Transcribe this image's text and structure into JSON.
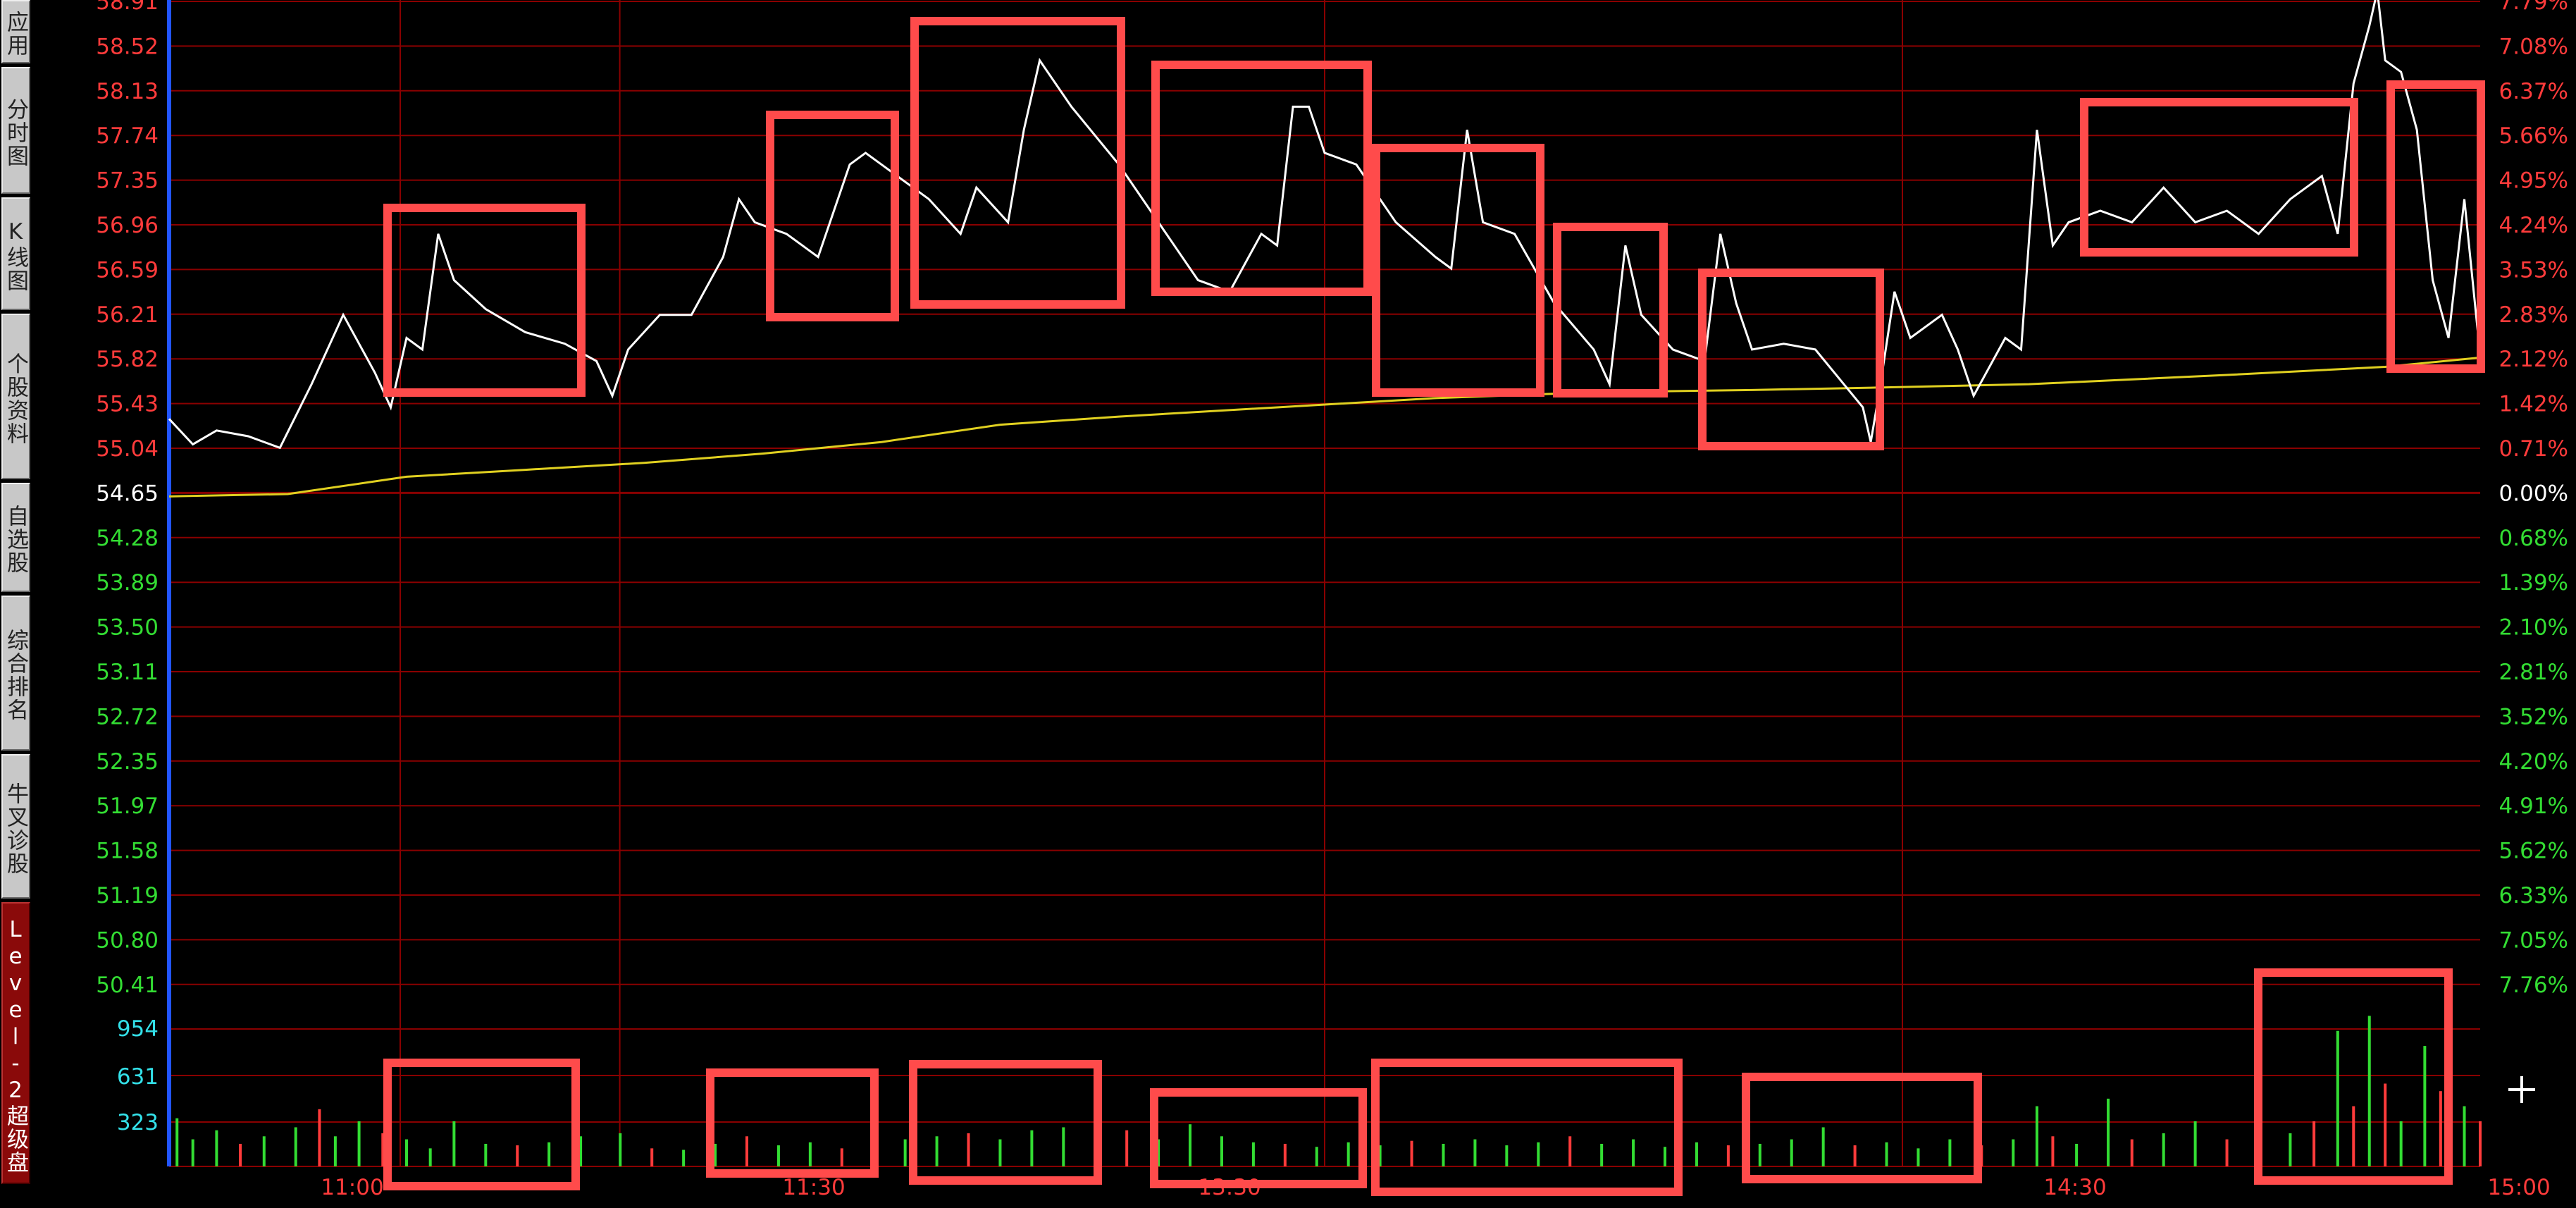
{
  "sidebar": {
    "tabs": [
      "应用",
      "分时图",
      "K线图",
      "个股资料",
      "自选股",
      "综合排名",
      "牛叉诊股",
      "Level-2超级盘口"
    ]
  },
  "chart_data": {
    "type": "line",
    "title": "",
    "prev_close": 54.65,
    "price_ticks_left": [
      "58.91",
      "58.52",
      "58.13",
      "57.74",
      "57.35",
      "56.96",
      "56.59",
      "56.21",
      "55.82",
      "55.43",
      "55.04",
      "54.65",
      "54.28",
      "53.89",
      "53.50",
      "53.11",
      "52.72",
      "52.35",
      "51.97",
      "51.58",
      "51.19",
      "50.80",
      "50.41"
    ],
    "pct_ticks_right": [
      "7.79%",
      "7.08%",
      "6.37%",
      "5.66%",
      "4.95%",
      "4.24%",
      "3.53%",
      "2.83%",
      "2.12%",
      "1.42%",
      "0.71%",
      "0.00%",
      "0.68%",
      "1.39%",
      "2.10%",
      "2.81%",
      "3.52%",
      "4.20%",
      "4.91%",
      "5.62%",
      "6.33%",
      "7.05%",
      "7.76%"
    ],
    "volume_ticks": [
      "954",
      "631",
      "323"
    ],
    "x_labels": [
      "11:00",
      "11:30",
      "13:30",
      "14:30",
      "15:00"
    ],
    "ylim": [
      50.41,
      58.91
    ],
    "volume_ylim": [
      0,
      1100
    ],
    "series": [
      {
        "name": "price",
        "points": [
          [
            0,
            55.3
          ],
          [
            3,
            55.08
          ],
          [
            6,
            55.2
          ],
          [
            10,
            55.15
          ],
          [
            14,
            55.05
          ],
          [
            18,
            55.6
          ],
          [
            22,
            56.2
          ],
          [
            26,
            55.7
          ],
          [
            28,
            55.4
          ],
          [
            30,
            56.0
          ],
          [
            32,
            55.9
          ],
          [
            34,
            56.9
          ],
          [
            36,
            56.5
          ],
          [
            40,
            56.25
          ],
          [
            45,
            56.05
          ],
          [
            50,
            55.95
          ],
          [
            54,
            55.8
          ],
          [
            56,
            55.5
          ],
          [
            58,
            55.9
          ],
          [
            62,
            56.2
          ],
          [
            66,
            56.2
          ],
          [
            70,
            56.7
          ],
          [
            72,
            57.2
          ],
          [
            74,
            57.0
          ],
          [
            78,
            56.9
          ],
          [
            82,
            56.7
          ],
          [
            84,
            57.1
          ],
          [
            86,
            57.5
          ],
          [
            88,
            57.6
          ],
          [
            92,
            57.4
          ],
          [
            96,
            57.2
          ],
          [
            100,
            56.9
          ],
          [
            102,
            57.3
          ],
          [
            106,
            57.0
          ],
          [
            108,
            57.8
          ],
          [
            110,
            58.4
          ],
          [
            114,
            58.0
          ],
          [
            120,
            57.5
          ],
          [
            126,
            56.9
          ],
          [
            130,
            56.5
          ],
          [
            134,
            56.4
          ],
          [
            138,
            56.9
          ],
          [
            140,
            56.8
          ],
          [
            142,
            58.0
          ],
          [
            144,
            58.0
          ],
          [
            146,
            57.6
          ],
          [
            150,
            57.5
          ],
          [
            155,
            57.0
          ],
          [
            160,
            56.7
          ],
          [
            162,
            56.6
          ],
          [
            164,
            57.8
          ],
          [
            166,
            57.0
          ],
          [
            170,
            56.9
          ],
          [
            175,
            56.3
          ],
          [
            180,
            55.9
          ],
          [
            182,
            55.6
          ],
          [
            184,
            56.8
          ],
          [
            186,
            56.2
          ],
          [
            190,
            55.9
          ],
          [
            194,
            55.8
          ],
          [
            196,
            56.9
          ],
          [
            198,
            56.3
          ],
          [
            200,
            55.9
          ],
          [
            204,
            55.95
          ],
          [
            208,
            55.9
          ],
          [
            214,
            55.4
          ],
          [
            215,
            55.1
          ],
          [
            216,
            55.5
          ],
          [
            218,
            56.4
          ],
          [
            220,
            56.0
          ],
          [
            224,
            56.2
          ],
          [
            226,
            55.9
          ],
          [
            228,
            55.5
          ],
          [
            232,
            56.0
          ],
          [
            234,
            55.9
          ],
          [
            236,
            57.8
          ],
          [
            238,
            56.8
          ],
          [
            240,
            57.0
          ],
          [
            244,
            57.1
          ],
          [
            248,
            57.0
          ],
          [
            252,
            57.3
          ],
          [
            256,
            57.0
          ],
          [
            260,
            57.1
          ],
          [
            264,
            56.9
          ],
          [
            268,
            57.2
          ],
          [
            272,
            57.4
          ],
          [
            274,
            56.9
          ],
          [
            276,
            58.2
          ],
          [
            278,
            58.7
          ],
          [
            279,
            59.0
          ],
          [
            280,
            58.4
          ],
          [
            282,
            58.3
          ],
          [
            284,
            57.8
          ],
          [
            286,
            56.5
          ],
          [
            288,
            56.0
          ],
          [
            290,
            57.2
          ],
          [
            292,
            55.85
          ]
        ]
      },
      {
        "name": "average",
        "points": [
          [
            0,
            54.63
          ],
          [
            15,
            54.65
          ],
          [
            30,
            54.8
          ],
          [
            45,
            54.86
          ],
          [
            60,
            54.92
          ],
          [
            75,
            55.0
          ],
          [
            90,
            55.1
          ],
          [
            105,
            55.25
          ],
          [
            120,
            55.32
          ],
          [
            140,
            55.4
          ],
          [
            160,
            55.48
          ],
          [
            180,
            55.53
          ],
          [
            200,
            55.55
          ],
          [
            215,
            55.57
          ],
          [
            235,
            55.6
          ],
          [
            260,
            55.68
          ],
          [
            280,
            55.75
          ],
          [
            292,
            55.83
          ]
        ]
      }
    ],
    "volume": [
      {
        "t": 1,
        "v": 320,
        "c": "g"
      },
      {
        "t": 3,
        "v": 180,
        "c": "g"
      },
      {
        "t": 6,
        "v": 240,
        "c": "g"
      },
      {
        "t": 9,
        "v": 150,
        "c": "r"
      },
      {
        "t": 12,
        "v": 200,
        "c": "g"
      },
      {
        "t": 16,
        "v": 260,
        "c": "g"
      },
      {
        "t": 19,
        "v": 380,
        "c": "r"
      },
      {
        "t": 21,
        "v": 200,
        "c": "g"
      },
      {
        "t": 24,
        "v": 300,
        "c": "g"
      },
      {
        "t": 27,
        "v": 220,
        "c": "r"
      },
      {
        "t": 30,
        "v": 180,
        "c": "g"
      },
      {
        "t": 33,
        "v": 120,
        "c": "g"
      },
      {
        "t": 36,
        "v": 300,
        "c": "g"
      },
      {
        "t": 40,
        "v": 150,
        "c": "g"
      },
      {
        "t": 44,
        "v": 140,
        "c": "r"
      },
      {
        "t": 48,
        "v": 160,
        "c": "g"
      },
      {
        "t": 52,
        "v": 200,
        "c": "g"
      },
      {
        "t": 57,
        "v": 220,
        "c": "g"
      },
      {
        "t": 61,
        "v": 120,
        "c": "r"
      },
      {
        "t": 65,
        "v": 110,
        "c": "g"
      },
      {
        "t": 69,
        "v": 150,
        "c": "g"
      },
      {
        "t": 73,
        "v": 200,
        "c": "r"
      },
      {
        "t": 77,
        "v": 140,
        "c": "g"
      },
      {
        "t": 81,
        "v": 160,
        "c": "g"
      },
      {
        "t": 85,
        "v": 120,
        "c": "r"
      },
      {
        "t": 89,
        "v": 300,
        "c": "g"
      },
      {
        "t": 93,
        "v": 180,
        "c": "g"
      },
      {
        "t": 97,
        "v": 200,
        "c": "g"
      },
      {
        "t": 101,
        "v": 220,
        "c": "r"
      },
      {
        "t": 105,
        "v": 180,
        "c": "g"
      },
      {
        "t": 109,
        "v": 240,
        "c": "g"
      },
      {
        "t": 113,
        "v": 260,
        "c": "g"
      },
      {
        "t": 117,
        "v": 200,
        "c": "g"
      },
      {
        "t": 121,
        "v": 240,
        "c": "r"
      },
      {
        "t": 125,
        "v": 180,
        "c": "g"
      },
      {
        "t": 129,
        "v": 280,
        "c": "g"
      },
      {
        "t": 133,
        "v": 200,
        "c": "g"
      },
      {
        "t": 137,
        "v": 160,
        "c": "g"
      },
      {
        "t": 141,
        "v": 150,
        "c": "r"
      },
      {
        "t": 145,
        "v": 130,
        "c": "g"
      },
      {
        "t": 149,
        "v": 160,
        "c": "g"
      },
      {
        "t": 153,
        "v": 140,
        "c": "g"
      },
      {
        "t": 157,
        "v": 170,
        "c": "r"
      },
      {
        "t": 161,
        "v": 150,
        "c": "g"
      },
      {
        "t": 165,
        "v": 180,
        "c": "g"
      },
      {
        "t": 169,
        "v": 140,
        "c": "g"
      },
      {
        "t": 173,
        "v": 160,
        "c": "g"
      },
      {
        "t": 177,
        "v": 200,
        "c": "r"
      },
      {
        "t": 181,
        "v": 150,
        "c": "g"
      },
      {
        "t": 185,
        "v": 180,
        "c": "g"
      },
      {
        "t": 189,
        "v": 130,
        "c": "g"
      },
      {
        "t": 193,
        "v": 160,
        "c": "g"
      },
      {
        "t": 197,
        "v": 140,
        "c": "r"
      },
      {
        "t": 201,
        "v": 150,
        "c": "g"
      },
      {
        "t": 205,
        "v": 180,
        "c": "g"
      },
      {
        "t": 209,
        "v": 260,
        "c": "g"
      },
      {
        "t": 213,
        "v": 140,
        "c": "r"
      },
      {
        "t": 217,
        "v": 160,
        "c": "g"
      },
      {
        "t": 221,
        "v": 120,
        "c": "g"
      },
      {
        "t": 225,
        "v": 180,
        "c": "g"
      },
      {
        "t": 229,
        "v": 140,
        "c": "r"
      },
      {
        "t": 233,
        "v": 180,
        "c": "g"
      },
      {
        "t": 236,
        "v": 400,
        "c": "g"
      },
      {
        "t": 238,
        "v": 200,
        "c": "r"
      },
      {
        "t": 241,
        "v": 150,
        "c": "g"
      },
      {
        "t": 245,
        "v": 450,
        "c": "g"
      },
      {
        "t": 248,
        "v": 180,
        "c": "r"
      },
      {
        "t": 252,
        "v": 220,
        "c": "g"
      },
      {
        "t": 256,
        "v": 300,
        "c": "g"
      },
      {
        "t": 260,
        "v": 180,
        "c": "r"
      },
      {
        "t": 264,
        "v": 260,
        "c": "g"
      },
      {
        "t": 268,
        "v": 220,
        "c": "g"
      },
      {
        "t": 271,
        "v": 300,
        "c": "r"
      },
      {
        "t": 274,
        "v": 900,
        "c": "g"
      },
      {
        "t": 276,
        "v": 400,
        "c": "r"
      },
      {
        "t": 278,
        "v": 1000,
        "c": "g"
      },
      {
        "t": 280,
        "v": 550,
        "c": "r"
      },
      {
        "t": 282,
        "v": 300,
        "c": "g"
      },
      {
        "t": 285,
        "v": 800,
        "c": "g"
      },
      {
        "t": 287,
        "v": 500,
        "c": "r"
      },
      {
        "t": 290,
        "v": 400,
        "c": "g"
      },
      {
        "t": 292,
        "v": 300,
        "c": "r"
      }
    ]
  },
  "colors": {
    "price_up": "#ff3b3b",
    "price_down": "#33dd33",
    "volume_axis": "#33e0e8",
    "grid": "#8a0000",
    "avg": "#e0d020",
    "price_line": "#ffffff",
    "highlight": "#ff4b4b"
  }
}
